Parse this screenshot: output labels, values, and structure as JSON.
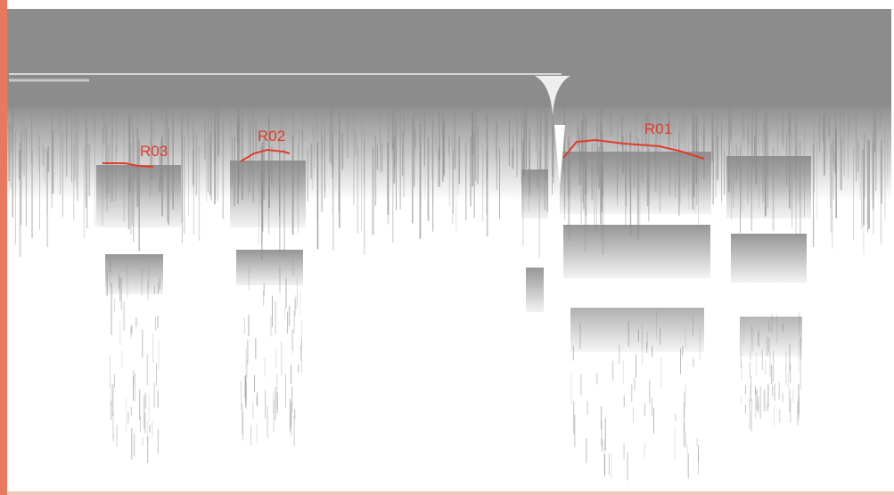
{
  "colors": {
    "background": "#ffffff",
    "gray": "#8c8c8c",
    "annotation": "#e03c2c",
    "edge": "#e8785e"
  },
  "annotations": [
    {
      "label": "R03"
    },
    {
      "label": "R02"
    },
    {
      "label": "R01"
    }
  ]
}
